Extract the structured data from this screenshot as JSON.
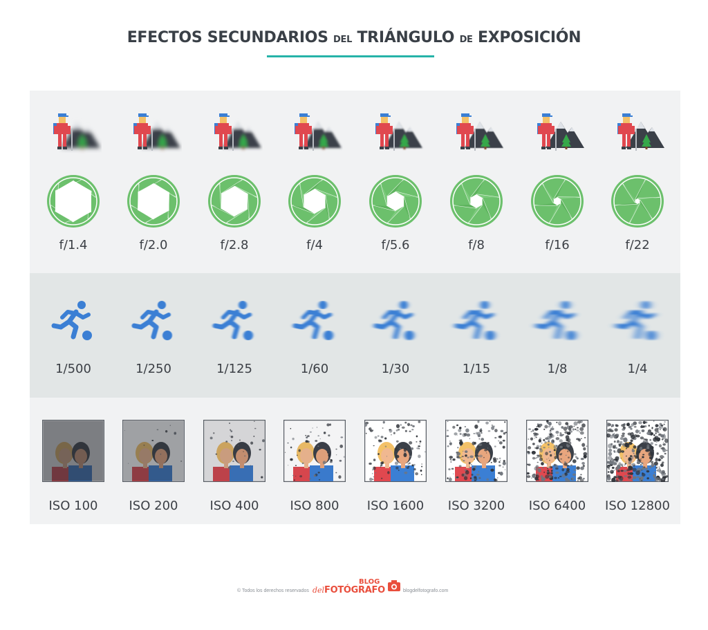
{
  "title": {
    "part1": "EFECTOS SECUNDARIOS",
    "part2": "DEL",
    "part3": "TRIÁNGULO",
    "part4": "DE",
    "part5": "EXPOSICIÓN"
  },
  "aperture": {
    "labels": [
      "f/1.4",
      "f/2.0",
      "f/2.8",
      "f/4",
      "f/5.6",
      "f/8",
      "f/16",
      "f/22"
    ]
  },
  "shutter": {
    "labels": [
      "1/500",
      "1/250",
      "1/125",
      "1/60",
      "1/30",
      "1/15",
      "1/8",
      "1/4"
    ]
  },
  "iso": {
    "labels": [
      "ISO 100",
      "ISO 200",
      "ISO 400",
      "ISO 800",
      "ISO 1600",
      "ISO 3200",
      "ISO 6400",
      "ISO 12800"
    ]
  },
  "colors": {
    "accent": "#26b3a8",
    "aperture_green": "#6cc06c",
    "runner_blue": "#3b7fd4",
    "brand_red": "#e94e3c"
  },
  "icons": {
    "aperture_row": [
      "hiker-mountain-icon",
      "aperture-icon"
    ],
    "shutter_row": "runner-kicking-ball-icon",
    "iso_row": "two-people-portrait-icon"
  },
  "footer": {
    "copyright": "© Todos los derechos reservados",
    "logo_del": "del",
    "logo_blog": "BLOG",
    "logo_name": "FOTÓGRAFO",
    "site": "blogdelfotografo.com"
  }
}
